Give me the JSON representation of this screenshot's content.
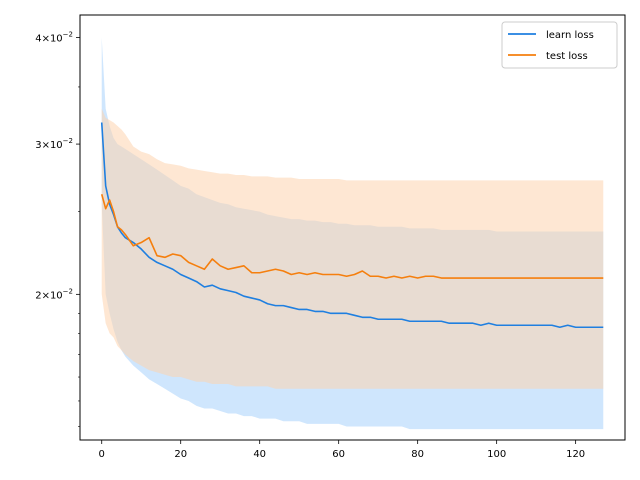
{
  "chart_data": {
    "type": "line",
    "title": "",
    "xlabel": "",
    "ylabel": "",
    "yscale": "log",
    "xlim": [
      -5.5,
      132.5
    ],
    "ylim": [
      0.0135,
      0.0425
    ],
    "xticks": [
      0,
      20,
      40,
      60,
      80,
      100,
      120
    ],
    "xtick_labels": [
      "0",
      "20",
      "40",
      "60",
      "80",
      "100",
      "120"
    ],
    "yticks": [
      0.02,
      0.03,
      0.04
    ],
    "ytick_labels": [
      {
        "mantissa": "2",
        "times": "×",
        "base": "10",
        "exp": "−2"
      },
      {
        "mantissa": "3",
        "times": "×",
        "base": "10",
        "exp": "−2"
      },
      {
        "mantissa": "4",
        "times": "×",
        "base": "10",
        "exp": "−2"
      }
    ],
    "grid": false,
    "legend_position": "top-right",
    "x": [
      0,
      1,
      2,
      3,
      4,
      5,
      6,
      8,
      10,
      12,
      14,
      16,
      18,
      20,
      22,
      24,
      26,
      28,
      30,
      32,
      34,
      36,
      38,
      40,
      42,
      44,
      46,
      48,
      50,
      52,
      54,
      56,
      58,
      60,
      62,
      64,
      66,
      68,
      70,
      72,
      74,
      76,
      78,
      80,
      82,
      84,
      86,
      88,
      90,
      92,
      94,
      96,
      98,
      100,
      102,
      104,
      106,
      108,
      110,
      112,
      114,
      116,
      118,
      120,
      122,
      124,
      126,
      127
    ],
    "series": [
      {
        "name": "learn loss",
        "color": "#1f7fe0",
        "band_color": "#a8d1fb",
        "values": [
          0.0318,
          0.0268,
          0.0255,
          0.0248,
          0.024,
          0.0236,
          0.0233,
          0.023,
          0.0226,
          0.0221,
          0.0218,
          0.0216,
          0.0214,
          0.0211,
          0.0209,
          0.0207,
          0.0204,
          0.0205,
          0.0203,
          0.0202,
          0.0201,
          0.0199,
          0.0198,
          0.0197,
          0.0195,
          0.0194,
          0.0194,
          0.0193,
          0.0192,
          0.0192,
          0.0191,
          0.0191,
          0.019,
          0.019,
          0.019,
          0.0189,
          0.0188,
          0.0188,
          0.0187,
          0.0187,
          0.0187,
          0.0187,
          0.0186,
          0.0186,
          0.0186,
          0.0186,
          0.0186,
          0.0185,
          0.0185,
          0.0185,
          0.0185,
          0.0184,
          0.0185,
          0.0184,
          0.0184,
          0.0184,
          0.0184,
          0.0184,
          0.0184,
          0.0184,
          0.0184,
          0.0183,
          0.0184,
          0.0183,
          0.0183,
          0.0183,
          0.0183,
          0.0183
        ],
        "upper": [
          0.04,
          0.033,
          0.0315,
          0.0305,
          0.03,
          0.0298,
          0.0296,
          0.0292,
          0.0288,
          0.0284,
          0.028,
          0.0276,
          0.0272,
          0.0268,
          0.0266,
          0.0262,
          0.026,
          0.0258,
          0.0256,
          0.0255,
          0.0253,
          0.0252,
          0.0251,
          0.025,
          0.0248,
          0.0247,
          0.0246,
          0.0245,
          0.0245,
          0.0244,
          0.0244,
          0.0243,
          0.0243,
          0.0242,
          0.0242,
          0.0241,
          0.0241,
          0.0241,
          0.024,
          0.024,
          0.024,
          0.024,
          0.0239,
          0.0239,
          0.0239,
          0.0239,
          0.0238,
          0.0238,
          0.0238,
          0.0238,
          0.0238,
          0.0238,
          0.0238,
          0.0237,
          0.0237,
          0.0237,
          0.0237,
          0.0237,
          0.0237,
          0.0237,
          0.0237,
          0.0237,
          0.0237,
          0.0237,
          0.0237,
          0.0237,
          0.0237,
          0.0237
        ],
        "lower": [
          0.0255,
          0.02,
          0.019,
          0.0182,
          0.0176,
          0.0172,
          0.0169,
          0.0165,
          0.0162,
          0.0159,
          0.0157,
          0.0155,
          0.0153,
          0.0151,
          0.015,
          0.0148,
          0.0147,
          0.0147,
          0.0146,
          0.0145,
          0.0145,
          0.0144,
          0.0144,
          0.0143,
          0.0143,
          0.0143,
          0.0142,
          0.0142,
          0.0142,
          0.0141,
          0.0141,
          0.0141,
          0.0141,
          0.0141,
          0.014,
          0.014,
          0.014,
          0.014,
          0.014,
          0.014,
          0.014,
          0.014,
          0.0139,
          0.0139,
          0.0139,
          0.0139,
          0.0139,
          0.0139,
          0.0139,
          0.0139,
          0.0139,
          0.0139,
          0.0139,
          0.0139,
          0.0139,
          0.0139,
          0.0139,
          0.0139,
          0.0139,
          0.0139,
          0.0139,
          0.0139,
          0.0139,
          0.0139,
          0.0139,
          0.0139,
          0.0139,
          0.0139
        ]
      },
      {
        "name": "test loss",
        "color": "#f57f0e",
        "band_color": "#fdd3ae",
        "values": [
          0.0262,
          0.0252,
          0.0258,
          0.025,
          0.024,
          0.0238,
          0.0235,
          0.0228,
          0.023,
          0.0233,
          0.0222,
          0.0221,
          0.0223,
          0.0222,
          0.0218,
          0.0216,
          0.0214,
          0.022,
          0.0216,
          0.0214,
          0.0215,
          0.0216,
          0.0212,
          0.0212,
          0.0213,
          0.0214,
          0.0213,
          0.0211,
          0.0212,
          0.0211,
          0.0212,
          0.0211,
          0.0211,
          0.0211,
          0.021,
          0.0211,
          0.0213,
          0.021,
          0.021,
          0.0209,
          0.021,
          0.0209,
          0.021,
          0.0209,
          0.021,
          0.021,
          0.0209,
          0.0209,
          0.0209,
          0.0209,
          0.0209,
          0.0209,
          0.0209,
          0.0209,
          0.0209,
          0.0209,
          0.0209,
          0.0209,
          0.0209,
          0.0209,
          0.0209,
          0.0209,
          0.0209,
          0.0209,
          0.0209,
          0.0209,
          0.0209,
          0.0209
        ],
        "upper": [
          0.033,
          0.0322,
          0.032,
          0.0318,
          0.0315,
          0.0312,
          0.0308,
          0.0298,
          0.0294,
          0.0292,
          0.0288,
          0.0285,
          0.0284,
          0.0283,
          0.0281,
          0.028,
          0.0279,
          0.0278,
          0.0277,
          0.0277,
          0.0276,
          0.0276,
          0.0275,
          0.0275,
          0.0275,
          0.0274,
          0.0274,
          0.0274,
          0.0273,
          0.0273,
          0.0273,
          0.0273,
          0.0273,
          0.0273,
          0.0272,
          0.0272,
          0.0272,
          0.0272,
          0.0272,
          0.0272,
          0.0272,
          0.0272,
          0.0272,
          0.0272,
          0.0272,
          0.0272,
          0.0272,
          0.0272,
          0.0272,
          0.0272,
          0.0272,
          0.0272,
          0.0272,
          0.0272,
          0.0272,
          0.0272,
          0.0272,
          0.0272,
          0.0272,
          0.0272,
          0.0272,
          0.0272,
          0.0272,
          0.0272,
          0.0272,
          0.0272,
          0.0272,
          0.0272
        ],
        "lower": [
          0.02,
          0.0185,
          0.018,
          0.0178,
          0.0174,
          0.0172,
          0.017,
          0.0167,
          0.0165,
          0.0163,
          0.0162,
          0.0161,
          0.016,
          0.016,
          0.0159,
          0.0158,
          0.0158,
          0.0157,
          0.0157,
          0.0157,
          0.0156,
          0.0156,
          0.0156,
          0.0156,
          0.0156,
          0.0155,
          0.0155,
          0.0155,
          0.0155,
          0.0155,
          0.0155,
          0.0155,
          0.0155,
          0.0155,
          0.0155,
          0.0155,
          0.0155,
          0.0155,
          0.0155,
          0.0155,
          0.0155,
          0.0155,
          0.0155,
          0.0155,
          0.0155,
          0.0155,
          0.0155,
          0.0155,
          0.0155,
          0.0155,
          0.0155,
          0.0155,
          0.0155,
          0.0155,
          0.0155,
          0.0155,
          0.0155,
          0.0155,
          0.0155,
          0.0155,
          0.0155,
          0.0155,
          0.0155,
          0.0155,
          0.0155,
          0.0155,
          0.0155,
          0.0155
        ]
      }
    ]
  }
}
